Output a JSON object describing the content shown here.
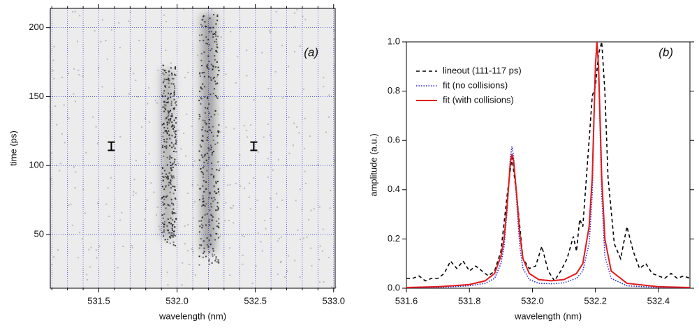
{
  "chart_data": [
    {
      "type": "image",
      "panel_label": "(a)",
      "x_label": "wavelength (nm)",
      "y_label": "time (ps)",
      "xlim": [
        531.19,
        533.01
      ],
      "ylim": [
        11,
        214
      ],
      "xticks": [
        531.5,
        {
          "value": 532.0,
          "label": "532.0"
        },
        532.5,
        {
          "value": 533.0,
          "label": "533.0"
        }
      ],
      "xminorticks": [
        531.2,
        531.3,
        531.4,
        531.6,
        531.7,
        531.8,
        531.9,
        532.1,
        532.2,
        532.3,
        532.4,
        532.6,
        532.7,
        532.8,
        532.9
      ],
      "yticks": [
        50,
        100,
        150,
        200
      ],
      "grid": true,
      "grid_color": "#3b3bdc",
      "markers": [
        {
          "x": 531.58,
          "t": [
            111,
            117
          ]
        },
        {
          "x": 532.49,
          "t": [
            111,
            117
          ]
        }
      ]
    },
    {
      "type": "line",
      "panel_label": "(b)",
      "x_label": "wavelength (nm)",
      "y_label": "amplitude (a.u.)",
      "xlim": [
        531.6,
        532.5
      ],
      "ylim": [
        0,
        1.0
      ],
      "xticks": [
        531.6,
        531.8,
        {
          "value": 532.0,
          "label": "532.0"
        },
        532.2,
        532.4
      ],
      "yticks": [
        {
          "value": 0,
          "label": "0.0"
        },
        0.2,
        0.4,
        0.6,
        0.8,
        {
          "value": 1.0,
          "label": "1.0"
        }
      ],
      "grid": false,
      "legend": "upper left",
      "series": [
        {
          "name": "lineout (111-117 ps)",
          "color": "#000000",
          "style": "dashed",
          "x": [
            531.6,
            531.62,
            531.64,
            531.66,
            531.68,
            531.7,
            531.72,
            531.74,
            531.76,
            531.78,
            531.8,
            531.82,
            531.84,
            531.86,
            531.88,
            531.9,
            531.92,
            531.935,
            531.95,
            531.97,
            531.99,
            532.01,
            532.03,
            532.05,
            532.07,
            532.09,
            532.11,
            532.13,
            532.14,
            532.15,
            532.16,
            532.18,
            532.19,
            532.2,
            532.21,
            532.22,
            532.23,
            532.24,
            532.26,
            532.28,
            532.3,
            532.32,
            532.34,
            532.36,
            532.38,
            532.4,
            532.42,
            532.44,
            532.46,
            532.48,
            532.5
          ],
          "values": [
            0.04,
            0.04,
            0.05,
            0.03,
            0.04,
            0.04,
            0.06,
            0.11,
            0.08,
            0.11,
            0.07,
            0.09,
            0.07,
            0.05,
            0.07,
            0.15,
            0.38,
            0.53,
            0.38,
            0.12,
            0.08,
            0.09,
            0.17,
            0.07,
            0.03,
            0.07,
            0.12,
            0.21,
            0.15,
            0.28,
            0.25,
            0.6,
            0.78,
            0.82,
            0.95,
            1.0,
            0.8,
            0.45,
            0.18,
            0.12,
            0.25,
            0.15,
            0.08,
            0.1,
            0.06,
            0.05,
            0.04,
            0.06,
            0.04,
            0.05,
            0.04
          ]
        },
        {
          "name": "fit (no collisions)",
          "color": "#2323d8",
          "style": "dotted",
          "x": [
            531.6,
            531.7,
            531.8,
            531.85,
            531.88,
            531.9,
            531.91,
            531.92,
            531.93,
            531.935,
            531.94,
            531.95,
            531.96,
            531.97,
            531.99,
            532.02,
            532.06,
            532.1,
            532.14,
            532.16,
            532.18,
            532.19,
            532.2,
            532.205,
            532.21,
            532.22,
            532.23,
            532.25,
            532.3,
            532.4,
            532.5
          ],
          "values": [
            0.0,
            0.003,
            0.01,
            0.02,
            0.04,
            0.1,
            0.17,
            0.32,
            0.53,
            0.575,
            0.54,
            0.35,
            0.17,
            0.08,
            0.035,
            0.02,
            0.018,
            0.022,
            0.04,
            0.07,
            0.18,
            0.38,
            0.92,
            1.0,
            0.88,
            0.38,
            0.13,
            0.04,
            0.01,
            0.003,
            0.001
          ]
        },
        {
          "name": "fit (with collisions)",
          "color": "#e31a1c",
          "style": "solid",
          "x": [
            531.6,
            531.7,
            531.8,
            531.85,
            531.88,
            531.9,
            531.91,
            531.92,
            531.93,
            531.935,
            531.94,
            531.95,
            531.96,
            531.97,
            531.99,
            532.02,
            532.06,
            532.1,
            532.14,
            532.16,
            532.18,
            532.19,
            532.2,
            532.205,
            532.21,
            532.22,
            532.23,
            532.25,
            532.3,
            532.4,
            532.5
          ],
          "values": [
            0.003,
            0.006,
            0.015,
            0.03,
            0.06,
            0.13,
            0.2,
            0.34,
            0.51,
            0.545,
            0.52,
            0.38,
            0.22,
            0.12,
            0.06,
            0.035,
            0.03,
            0.035,
            0.06,
            0.1,
            0.25,
            0.45,
            0.9,
            1.0,
            0.9,
            0.45,
            0.2,
            0.07,
            0.02,
            0.006,
            0.003
          ]
        }
      ]
    }
  ]
}
